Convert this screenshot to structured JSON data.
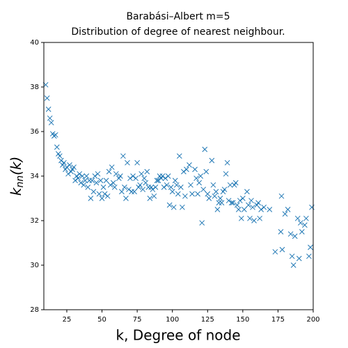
{
  "chart_data": {
    "type": "scatter",
    "title": "Barabási–Albert m=5",
    "subtitle": "Distribution of degree of nearest neighbour.",
    "xlabel": "k, Degree of node",
    "ylabel": {
      "base": "k",
      "sub": "nn",
      "rest": "(k)"
    },
    "xlim": [
      8.7,
      200
    ],
    "ylim": [
      28,
      40
    ],
    "xticks": [
      25,
      50,
      75,
      100,
      125,
      150,
      175,
      200
    ],
    "yticks": [
      28,
      30,
      32,
      34,
      36,
      38,
      40
    ],
    "marker": "x",
    "series": [
      {
        "color": "#1f77b4",
        "x": [
          10,
          11,
          12,
          13,
          14,
          15,
          16,
          17,
          18,
          19,
          20,
          21,
          22,
          23,
          24,
          25,
          26,
          27,
          28,
          29,
          30,
          31,
          32,
          33,
          34,
          35,
          36,
          37,
          38,
          39,
          40,
          41,
          42,
          43,
          44,
          45,
          46,
          47,
          48,
          49,
          50,
          51,
          52,
          53,
          54,
          55,
          56,
          57,
          58,
          59,
          60,
          62,
          63,
          64,
          65,
          66,
          67,
          68,
          69,
          70,
          71,
          72,
          73,
          74,
          75,
          76,
          77,
          78,
          79,
          80,
          81,
          82,
          83,
          84,
          85,
          86,
          87,
          88,
          89,
          90,
          91,
          92,
          93,
          94,
          95,
          96,
          97,
          98,
          99,
          100,
          101,
          102,
          103,
          104,
          105,
          106,
          107,
          108,
          109,
          110,
          112,
          113,
          114,
          116,
          117,
          118,
          119,
          120,
          121,
          122,
          123,
          124,
          125,
          126,
          128,
          129,
          130,
          131,
          132,
          133,
          134,
          135,
          136,
          137,
          138,
          139,
          140,
          141,
          142,
          143,
          144,
          145,
          146,
          147,
          148,
          149,
          150,
          151,
          153,
          154,
          155,
          156,
          157,
          158,
          160,
          161,
          162,
          163,
          165,
          169,
          173,
          177,
          177.5,
          178,
          180,
          182,
          184,
          185,
          186,
          187,
          189,
          190,
          191,
          192,
          194,
          195,
          197,
          198,
          199
        ],
        "values": [
          38.1,
          37.5,
          37.0,
          36.6,
          36.4,
          35.9,
          35.8,
          35.85,
          35.3,
          35.0,
          34.9,
          34.7,
          34.5,
          34.6,
          34.3,
          34.4,
          34.1,
          34.5,
          34.2,
          34.3,
          34.4,
          33.8,
          34.0,
          33.9,
          34.1,
          33.7,
          34.0,
          33.6,
          33.8,
          34.0,
          33.5,
          33.8,
          33.0,
          33.8,
          33.3,
          34.0,
          33.7,
          34.1,
          33.2,
          33.8,
          33.0,
          33.5,
          33.2,
          33.8,
          33.1,
          34.2,
          33.6,
          34.4,
          33.7,
          33.5,
          34.1,
          33.9,
          34.0,
          33.3,
          34.9,
          33.5,
          33.0,
          34.6,
          33.4,
          33.9,
          33.3,
          34.0,
          33.3,
          33.9,
          34.6,
          33.5,
          33.6,
          34.1,
          33.4,
          33.9,
          33.7,
          34.2,
          33.5,
          33.0,
          33.5,
          33.4,
          33.1,
          33.5,
          33.8,
          33.8,
          34.0,
          33.9,
          34.0,
          33.5,
          33.9,
          33.6,
          34.0,
          32.7,
          33.5,
          33.3,
          32.6,
          33.8,
          33.6,
          33.2,
          34.9,
          33.5,
          32.6,
          34.2,
          33.1,
          34.3,
          34.5,
          33.6,
          33.2,
          34.3,
          33.9,
          33.2,
          33.7,
          34.0,
          31.9,
          33.4,
          35.2,
          34.2,
          33.2,
          33.0,
          34.7,
          33.6,
          33.1,
          33.3,
          32.5,
          32.8,
          33.0,
          32.8,
          33.3,
          33.4,
          34.1,
          34.6,
          32.9,
          33.6,
          32.8,
          32.8,
          33.6,
          33.7,
          32.7,
          32.5,
          32.9,
          32.1,
          33.0,
          32.5,
          33.3,
          32.7,
          32.1,
          32.9,
          32.6,
          32.0,
          32.7,
          32.8,
          32.1,
          32.5,
          32.6,
          32.5,
          30.6,
          31.5,
          33.1,
          30.7,
          32.3,
          32.5,
          31.4,
          30.4,
          30.0,
          31.3,
          32.1,
          30.3,
          31.9,
          31.5,
          31.8,
          32.1,
          30.4,
          30.8,
          32.6
        ]
      }
    ]
  }
}
